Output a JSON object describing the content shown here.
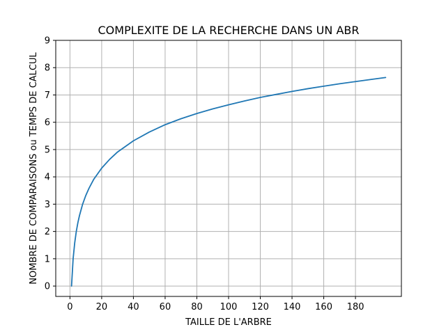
{
  "chart_data": {
    "type": "line",
    "title": "COMPLEXITE DE LA RECHERCHE DANS UN ABR",
    "xlabel": "TAILLE DE L'ARBRE",
    "ylabel": "NOMBRE DE COMPARAISONS ou TEMPS DE CALCUL",
    "xlim": [
      -8.95,
      208.95
    ],
    "ylim": [
      -0.38,
      9
    ],
    "xticks": [
      0,
      20,
      40,
      60,
      80,
      100,
      120,
      140,
      160,
      180
    ],
    "yticks": [
      0,
      1,
      2,
      3,
      4,
      5,
      6,
      7,
      8,
      9
    ],
    "grid": true,
    "series": [
      {
        "color": "#1f77b4",
        "x": [
          1,
          2,
          3,
          4,
          5,
          6,
          8,
          10,
          12,
          15,
          20,
          25,
          30,
          40,
          50,
          60,
          70,
          80,
          90,
          100,
          110,
          120,
          130,
          140,
          150,
          160,
          170,
          180,
          190,
          199
        ],
        "y": [
          0,
          1.0,
          1.58,
          2.0,
          2.32,
          2.58,
          3.0,
          3.32,
          3.58,
          3.91,
          4.32,
          4.64,
          4.91,
          5.32,
          5.64,
          5.91,
          6.13,
          6.32,
          6.49,
          6.64,
          6.78,
          6.91,
          7.02,
          7.13,
          7.23,
          7.32,
          7.41,
          7.49,
          7.57,
          7.64
        ]
      }
    ]
  }
}
